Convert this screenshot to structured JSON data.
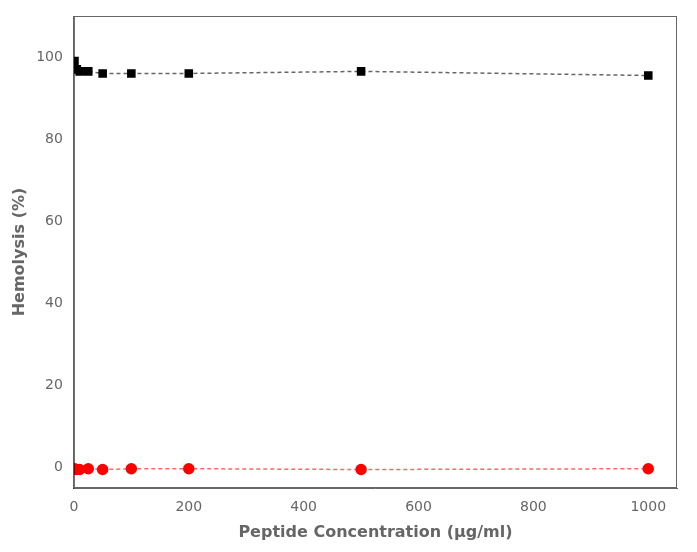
{
  "chart_data": {
    "type": "line",
    "x": [
      1,
      5,
      10,
      25,
      50,
      100,
      200,
      500,
      1000
    ],
    "series": [
      {
        "color": "#000000",
        "marker": "square",
        "line_style": "dashed",
        "values": [
          99,
          97,
          96.5,
          96.5,
          96,
          96,
          96,
          96.5,
          95.5
        ]
      },
      {
        "color": "#ff0000",
        "marker": "circle",
        "line_style": "dashed",
        "values": [
          -0.3,
          -0.5,
          -0.5,
          -0.3,
          -0.5,
          -0.3,
          -0.3,
          -0.5,
          -0.3
        ]
      }
    ],
    "x_label": "Peptide Concentration (μg/ml)",
    "y_label": "Hemolysis (%)",
    "xlim": [
      0,
      1050
    ],
    "ylim": [
      -5,
      110
    ],
    "xticks": [
      0,
      200,
      400,
      600,
      800,
      1000
    ],
    "yticks": [
      0,
      20,
      40,
      60,
      80,
      100
    ],
    "grid": false
  }
}
